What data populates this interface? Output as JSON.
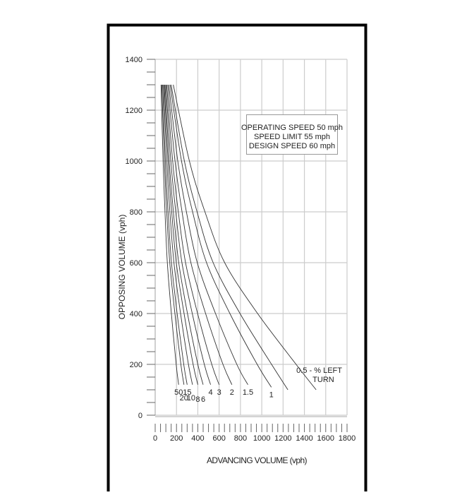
{
  "chart_data": {
    "type": "line",
    "xlabel": "ADVANCING VOLUME (vph)",
    "ylabel": "OPPOSING VOLUME (vph)",
    "xlim": [
      0,
      1800
    ],
    "ylim": [
      0,
      1400
    ],
    "xticks": [
      "0",
      "200",
      "400",
      "600",
      "800",
      "1000",
      "1200",
      "1400",
      "1600",
      "1800"
    ],
    "yticks": [
      "0",
      "200",
      "400",
      "600",
      "800",
      "1000",
      "1200",
      "1400"
    ],
    "grid": true,
    "annotation": [
      "OPERATING SPEED 50 mph",
      "SPEED LIMIT 55 mph",
      "DESIGN SPEED 60 mph"
    ],
    "curve_label_suffix": [
      "- % LEFT",
      "TURN"
    ],
    "series": [
      {
        "name": "50",
        "points": [
          [
            55,
            1300
          ],
          [
            74,
            1000
          ],
          [
            92,
            800
          ],
          [
            114,
            600
          ],
          [
            152,
            400
          ],
          [
            197,
            200
          ],
          [
            220,
            120
          ]
        ]
      },
      {
        "name": "20",
        "points": [
          [
            62,
            1300
          ],
          [
            86,
            1000
          ],
          [
            108,
            800
          ],
          [
            137,
            600
          ],
          [
            185,
            400
          ],
          [
            241,
            200
          ],
          [
            270,
            120
          ]
        ]
      },
      {
        "name": "15",
        "points": [
          [
            70,
            1300
          ],
          [
            96,
            1000
          ],
          [
            121,
            800
          ],
          [
            153,
            600
          ],
          [
            206,
            400
          ],
          [
            268,
            200
          ],
          [
            300,
            120
          ]
        ]
      },
      {
        "name": "10",
        "points": [
          [
            78,
            1300
          ],
          [
            109,
            1000
          ],
          [
            138,
            800
          ],
          [
            176,
            600
          ],
          [
            238,
            400
          ],
          [
            312,
            200
          ],
          [
            350,
            120
          ]
        ]
      },
      {
        "name": "8",
        "points": [
          [
            85,
            1300
          ],
          [
            121,
            1000
          ],
          [
            155,
            800
          ],
          [
            198,
            600
          ],
          [
            271,
            400
          ],
          [
            356,
            200
          ],
          [
            400,
            120
          ]
        ]
      },
      {
        "name": "6",
        "points": [
          [
            92,
            1300
          ],
          [
            132,
            1000
          ],
          [
            171,
            800
          ],
          [
            221,
            600
          ],
          [
            303,
            400
          ],
          [
            400,
            200
          ],
          [
            450,
            120
          ]
        ]
      },
      {
        "name": "4",
        "points": [
          [
            100,
            1300
          ],
          [
            147,
            1000
          ],
          [
            193,
            800
          ],
          [
            251,
            600
          ],
          [
            348,
            400
          ],
          [
            461,
            200
          ],
          [
            520,
            120
          ]
        ]
      },
      {
        "name": "3",
        "points": [
          [
            108,
            1300
          ],
          [
            164,
            1000
          ],
          [
            217,
            800
          ],
          [
            285,
            600
          ],
          [
            398,
            400
          ],
          [
            531,
            200
          ],
          [
            600,
            120
          ]
        ]
      },
      {
        "name": "2",
        "points": [
          [
            118,
            1300
          ],
          [
            186,
            1000
          ],
          [
            252,
            800
          ],
          [
            335,
            600
          ],
          [
            473,
            400
          ],
          [
            636,
            200
          ],
          [
            720,
            120
          ]
        ]
      },
      {
        "name": "1.5",
        "points": [
          [
            128,
            1300
          ],
          [
            212,
            1000
          ],
          [
            293,
            800
          ],
          [
            395,
            600
          ],
          [
            566,
            400
          ],
          [
            766,
            200
          ],
          [
            870,
            120
          ]
        ]
      },
      {
        "name": "1",
        "points": [
          [
            140,
            1300
          ],
          [
            247,
            1000
          ],
          [
            351,
            800
          ],
          [
            482,
            600
          ],
          [
            701,
            400
          ],
          [
            957,
            200
          ],
          [
            1090,
            110
          ]
        ]
      },
      {
        "points": [
          [
            150,
            1300
          ],
          [
            274,
            1000
          ],
          [
            393,
            800
          ],
          [
            544,
            600
          ],
          [
            796,
            400
          ],
          [
            1092,
            200
          ],
          [
            1245,
            100
          ]
        ]
      },
      {
        "name": "0.5",
        "points": [
          [
            170,
            1300
          ],
          [
            321,
            1000
          ],
          [
            467,
            800
          ],
          [
            652,
            600
          ],
          [
            961,
            400
          ],
          [
            1322,
            200
          ],
          [
            1510,
            100
          ]
        ]
      }
    ],
    "colors": {
      "curve": "#333333",
      "grid": "#cccccc",
      "frame": "#000000"
    }
  }
}
